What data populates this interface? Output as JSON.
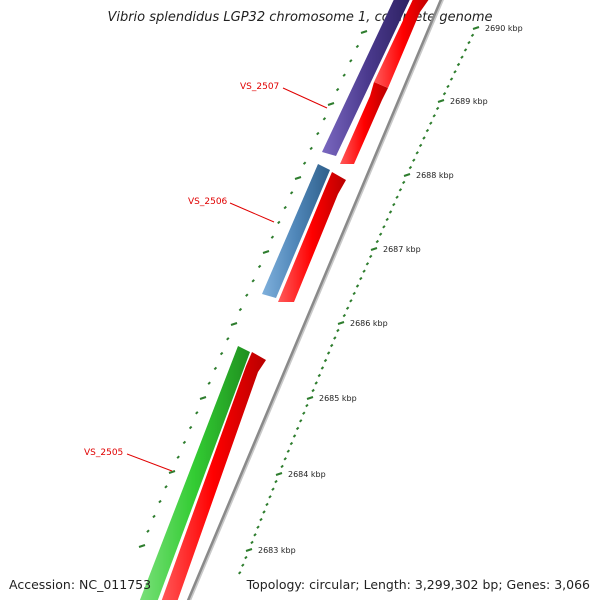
{
  "title": "Vibrio splendidus LGP32 chromosome 1, complete genome",
  "accession": "Accession: NC_011753",
  "summary": "Topology: circular; Length: 3,299,302 bp; Genes: 3,066",
  "ticks": [
    {
      "label": "2683 kbp"
    },
    {
      "label": "2684 kbp"
    },
    {
      "label": "2685 kbp"
    },
    {
      "label": "2686 kbp"
    },
    {
      "label": "2687 kbp"
    },
    {
      "label": "2688 kbp"
    },
    {
      "label": "2689 kbp"
    },
    {
      "label": "2690 kbp"
    }
  ],
  "gene_labels": [
    {
      "label": "VS_2507"
    },
    {
      "label": "VS_2506"
    },
    {
      "label": "VS_2505"
    }
  ],
  "colors": {
    "cds": "#ff0000",
    "gene_green": "#33cc33",
    "gene_blue": "#4f86b8",
    "gene_purple": "#4b3a8e",
    "backbone": "#8a8a8a",
    "tick": "#2e7d2e",
    "label": "#e00000"
  }
}
